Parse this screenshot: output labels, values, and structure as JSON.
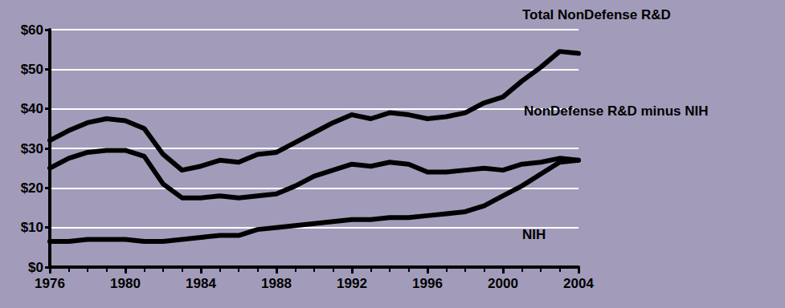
{
  "chart_data": {
    "type": "line",
    "x": [
      1976,
      1977,
      1978,
      1979,
      1980,
      1981,
      1982,
      1983,
      1984,
      1985,
      1986,
      1987,
      1988,
      1989,
      1990,
      1991,
      1992,
      1993,
      1994,
      1995,
      1996,
      1997,
      1998,
      1999,
      2000,
      2001,
      2002,
      2003,
      2004
    ],
    "series": [
      {
        "name": "Total NonDefense R&D",
        "color": "#000000",
        "values": [
          32,
          34.5,
          36.5,
          37.5,
          37,
          35,
          28.5,
          24.5,
          25.5,
          27,
          26.5,
          28.5,
          29,
          31.5,
          34,
          36.5,
          38.5,
          37.5,
          39,
          38.5,
          37.5,
          38,
          39,
          41.5,
          43,
          47,
          50.5,
          54.5,
          54
        ]
      },
      {
        "name": "NonDefense R&D minus NIH",
        "color": "#000000",
        "values": [
          25,
          27.5,
          29,
          29.5,
          29.5,
          28,
          21,
          17.5,
          17.5,
          18,
          17.5,
          18,
          18.5,
          20.5,
          23,
          24.5,
          26,
          25.5,
          26.5,
          26,
          24,
          24,
          24.5,
          25,
          24.5,
          26,
          26.5,
          27.5,
          27
        ]
      },
      {
        "name": "NIH",
        "color": "#000000",
        "values": [
          6.5,
          6.5,
          7,
          7,
          7,
          6.5,
          6.5,
          7,
          7.5,
          8,
          8,
          9.5,
          10,
          10.5,
          11,
          11.5,
          12,
          12,
          12.5,
          12.5,
          13,
          13.5,
          14,
          15.5,
          18,
          20.5,
          23.5,
          26.5,
          27
        ]
      }
    ],
    "xlim": [
      1976,
      2004
    ],
    "xticks": [
      1976,
      1980,
      1984,
      1988,
      1992,
      1996,
      2000,
      2004
    ],
    "ylim": [
      0,
      60
    ],
    "yticks": [
      {
        "value": 0,
        "label": "$0"
      },
      {
        "value": 10,
        "label": "$10"
      },
      {
        "value": 20,
        "label": "$20"
      },
      {
        "value": 30,
        "label": "$30"
      },
      {
        "value": 40,
        "label": "$40"
      },
      {
        "value": 50,
        "label": "$50"
      },
      {
        "value": 60,
        "label": "$60"
      }
    ],
    "grid": true
  }
}
